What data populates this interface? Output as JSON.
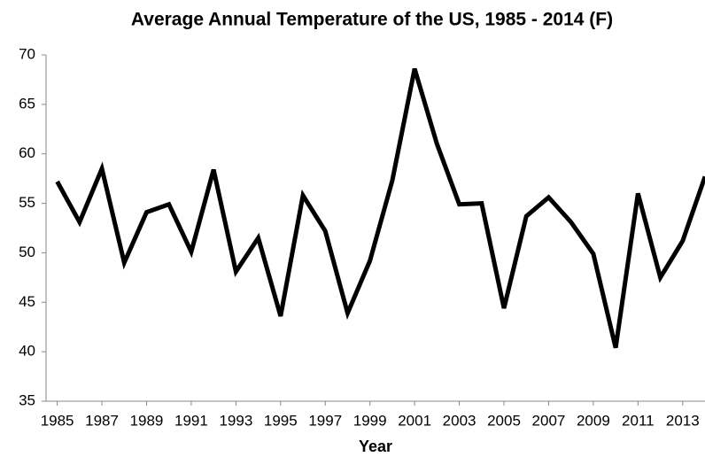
{
  "chart_data": {
    "type": "line",
    "title": "Average Annual Temperature of the US, 1985 - 2014 (F)",
    "x_label": "Year",
    "x": [
      1985,
      1986,
      1987,
      1988,
      1989,
      1990,
      1991,
      1992,
      1993,
      1994,
      1995,
      1996,
      1997,
      1998,
      1999,
      2000,
      2001,
      2002,
      2003,
      2004,
      2005,
      2006,
      2007,
      2008,
      2009,
      2010,
      2011,
      2012,
      2013,
      2014
    ],
    "series": [
      {
        "name": "Average Annual Temperature",
        "color": "#000000",
        "values": [
          57.2,
          53.1,
          58.5,
          49,
          54.1,
          54.9,
          50.1,
          58.4,
          48.1,
          51.5,
          43.6,
          55.8,
          52.2,
          43.9,
          49.2,
          57.3,
          68.6,
          61,
          54.9,
          55,
          44.4,
          53.7,
          55.6,
          53.1,
          49.9,
          40.4,
          56,
          47.5,
          51.2,
          57.7
        ]
      }
    ],
    "xlim": [
      1984.5,
      2014
    ],
    "xticks": [
      1985,
      1987,
      1989,
      1991,
      1993,
      1995,
      1997,
      1999,
      2001,
      2003,
      2005,
      2007,
      2009,
      2011,
      2013
    ],
    "ylim": [
      35,
      70
    ],
    "yticks": [
      35,
      40,
      45,
      50,
      55,
      60,
      65,
      70
    ],
    "grid": false
  }
}
